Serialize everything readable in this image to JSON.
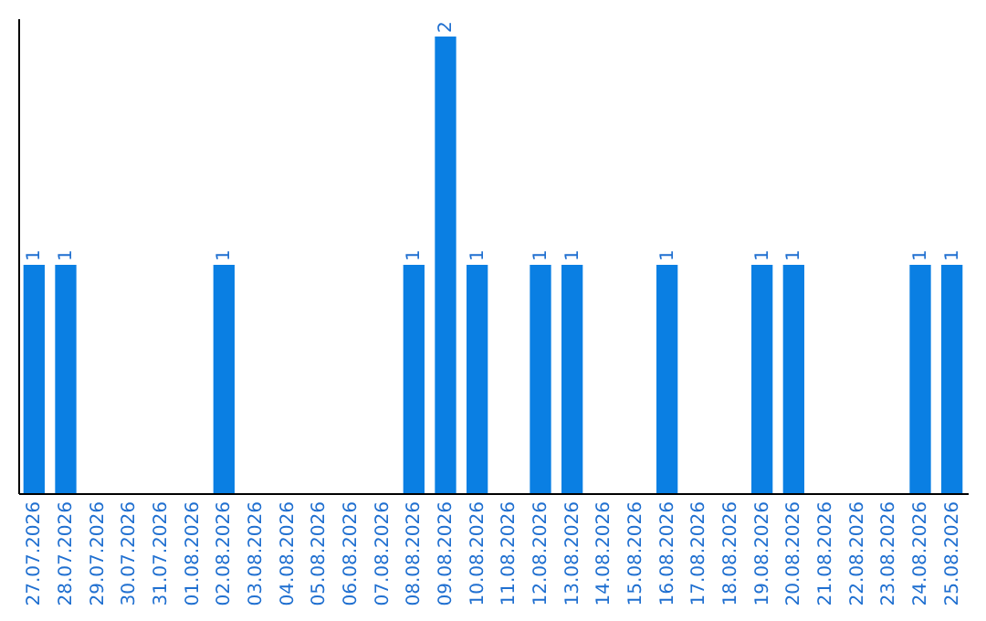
{
  "chart_data": {
    "type": "bar",
    "categories": [
      "27.07.2026",
      "28.07.2026",
      "29.07.2026",
      "30.07.2026",
      "31.07.2026",
      "01.08.2026",
      "02.08.2026",
      "03.08.2026",
      "04.08.2026",
      "05.08.2026",
      "06.08.2026",
      "07.08.2026",
      "08.08.2026",
      "09.08.2026",
      "10.08.2026",
      "11.08.2026",
      "12.08.2026",
      "13.08.2026",
      "14.08.2026",
      "15.08.2026",
      "16.08.2026",
      "17.08.2026",
      "18.08.2026",
      "19.08.2026",
      "20.08.2026",
      "21.08.2026",
      "22.08.2026",
      "23.08.2026",
      "24.08.2026",
      "25.08.2026"
    ],
    "values": [
      1,
      1,
      0,
      0,
      0,
      0,
      1,
      0,
      0,
      0,
      0,
      0,
      1,
      2,
      1,
      0,
      1,
      1,
      0,
      0,
      1,
      0,
      0,
      1,
      1,
      0,
      0,
      0,
      1,
      1
    ],
    "value_labels": [
      "1",
      "1",
      null,
      null,
      null,
      null,
      "1",
      null,
      null,
      null,
      null,
      null,
      "1",
      "2",
      "1",
      null,
      "1",
      "1",
      null,
      null,
      "1",
      null,
      null,
      "1",
      "1",
      null,
      null,
      null,
      "1",
      "1"
    ],
    "color": "#0a7fe3",
    "ylim": [
      0,
      2.08
    ],
    "grid": false
  }
}
